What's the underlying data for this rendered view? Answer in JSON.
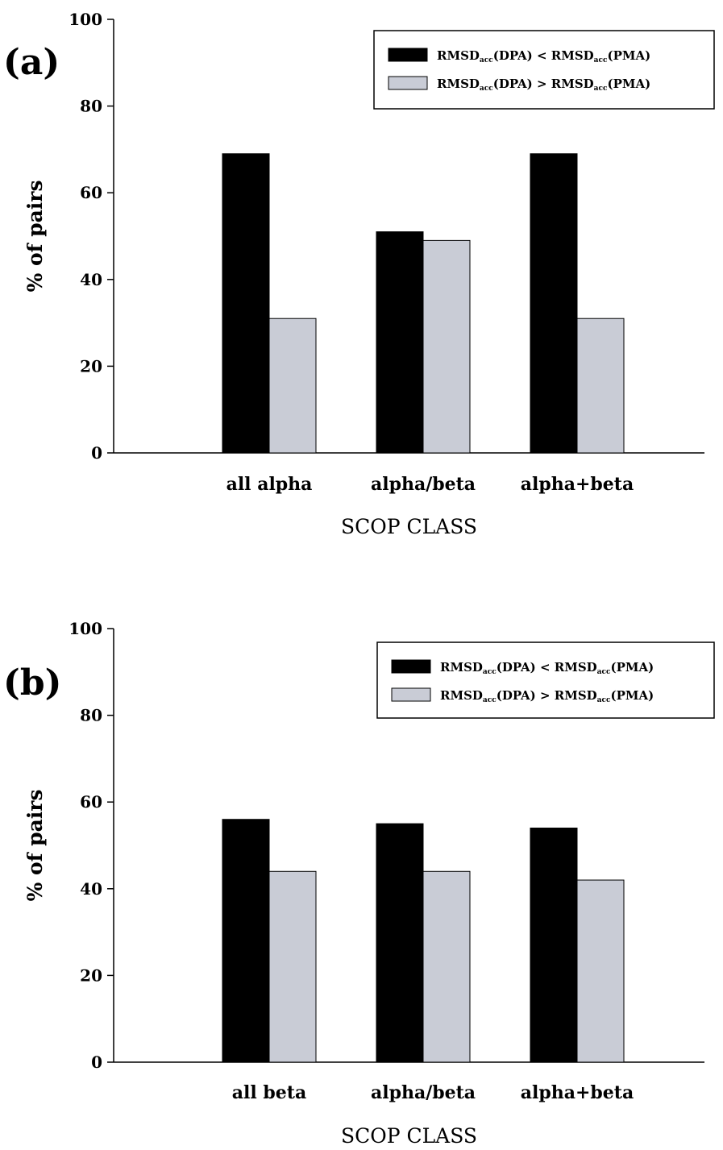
{
  "colors": {
    "black_bar": "#000000",
    "gray_bar": "#c9ccd6",
    "axis": "#000000"
  },
  "chart_data": [
    {
      "type": "bar",
      "panel_label": "(a)",
      "categories": [
        "all alpha",
        "alpha/beta",
        "alpha+beta"
      ],
      "series": [
        {
          "values": [
            69,
            51,
            69
          ],
          "color": "#000000",
          "legend_parts": [
            {
              "t": "RMSD",
              "sub": false
            },
            {
              "t": "acc",
              "sub": true
            },
            {
              "t": "(DPA) < RMSD",
              "sub": false
            },
            {
              "t": "acc",
              "sub": true
            },
            {
              "t": "(PMA)",
              "sub": false
            }
          ]
        },
        {
          "values": [
            31,
            49,
            31
          ],
          "color": "#c9ccd6",
          "legend_parts": [
            {
              "t": "RMSD",
              "sub": false
            },
            {
              "t": "acc",
              "sub": true
            },
            {
              "t": "(DPA) > RMSD",
              "sub": false
            },
            {
              "t": "acc",
              "sub": true
            },
            {
              "t": "(PMA)",
              "sub": false
            }
          ]
        }
      ],
      "xlabel": "SCOP CLASS",
      "ylabel": "% of pairs",
      "ylim": [
        0,
        100
      ],
      "yticks": [
        "0",
        "20",
        "40",
        "60",
        "80",
        "100"
      ],
      "grid": false,
      "legend_position": "top-right"
    },
    {
      "type": "bar",
      "panel_label": "(b)",
      "categories": [
        "all beta",
        "alpha/beta",
        "alpha+beta"
      ],
      "series": [
        {
          "values": [
            56,
            55,
            54
          ],
          "color": "#000000",
          "legend_parts": [
            {
              "t": "RMSD",
              "sub": false
            },
            {
              "t": "acc",
              "sub": true
            },
            {
              "t": "(DPA) < RMSD",
              "sub": false
            },
            {
              "t": "acc",
              "sub": true
            },
            {
              "t": "(PMA)",
              "sub": false
            }
          ]
        },
        {
          "values": [
            44,
            44,
            42
          ],
          "color": "#c9ccd6",
          "legend_parts": [
            {
              "t": "RMSD",
              "sub": false
            },
            {
              "t": "acc",
              "sub": true
            },
            {
              "t": "(DPA) > RMSD",
              "sub": false
            },
            {
              "t": "acc",
              "sub": true
            },
            {
              "t": "(PMA)",
              "sub": false
            }
          ]
        }
      ],
      "xlabel": "SCOP CLASS",
      "ylabel": "% of pairs",
      "ylim": [
        0,
        100
      ],
      "yticks": [
        "0",
        "20",
        "40",
        "60",
        "80",
        "100"
      ],
      "grid": false,
      "legend_position": "top-right"
    }
  ]
}
